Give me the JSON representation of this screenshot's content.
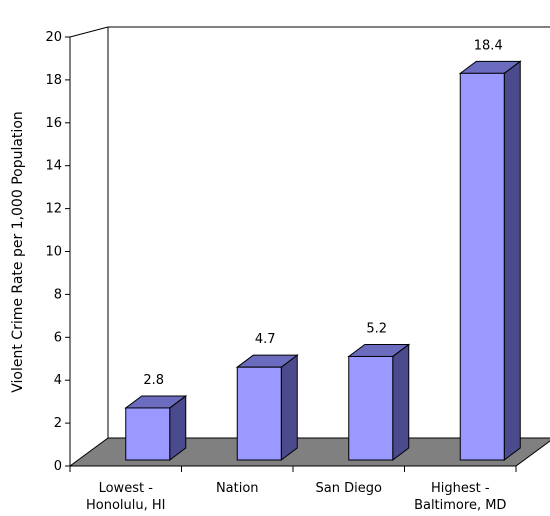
{
  "chart_data": {
    "type": "bar",
    "three_d": true,
    "categories": [
      [
        "Lowest -",
        "Honolulu, HI"
      ],
      [
        "Nation"
      ],
      [
        "San Diego"
      ],
      [
        "Highest -",
        "Baltimore, MD"
      ]
    ],
    "values": [
      2.8,
      4.7,
      5.2,
      18.4
    ],
    "value_labels": [
      "2.8",
      "4.7",
      "5.2",
      "18.4"
    ],
    "title": "",
    "xlabel": "",
    "ylabel": "Violent Crime Rate per 1,000 Population",
    "ylim": [
      0,
      20
    ],
    "yticks": [
      0,
      2,
      4,
      6,
      8,
      10,
      12,
      14,
      16,
      18,
      20
    ],
    "grid": false,
    "legend": "none",
    "colors": {
      "bar_front": "#9999ff",
      "bar_side": "#4a4a8c",
      "bar_top": "#6b6bbf",
      "floor": "#808080",
      "axis": "#000000"
    }
  }
}
